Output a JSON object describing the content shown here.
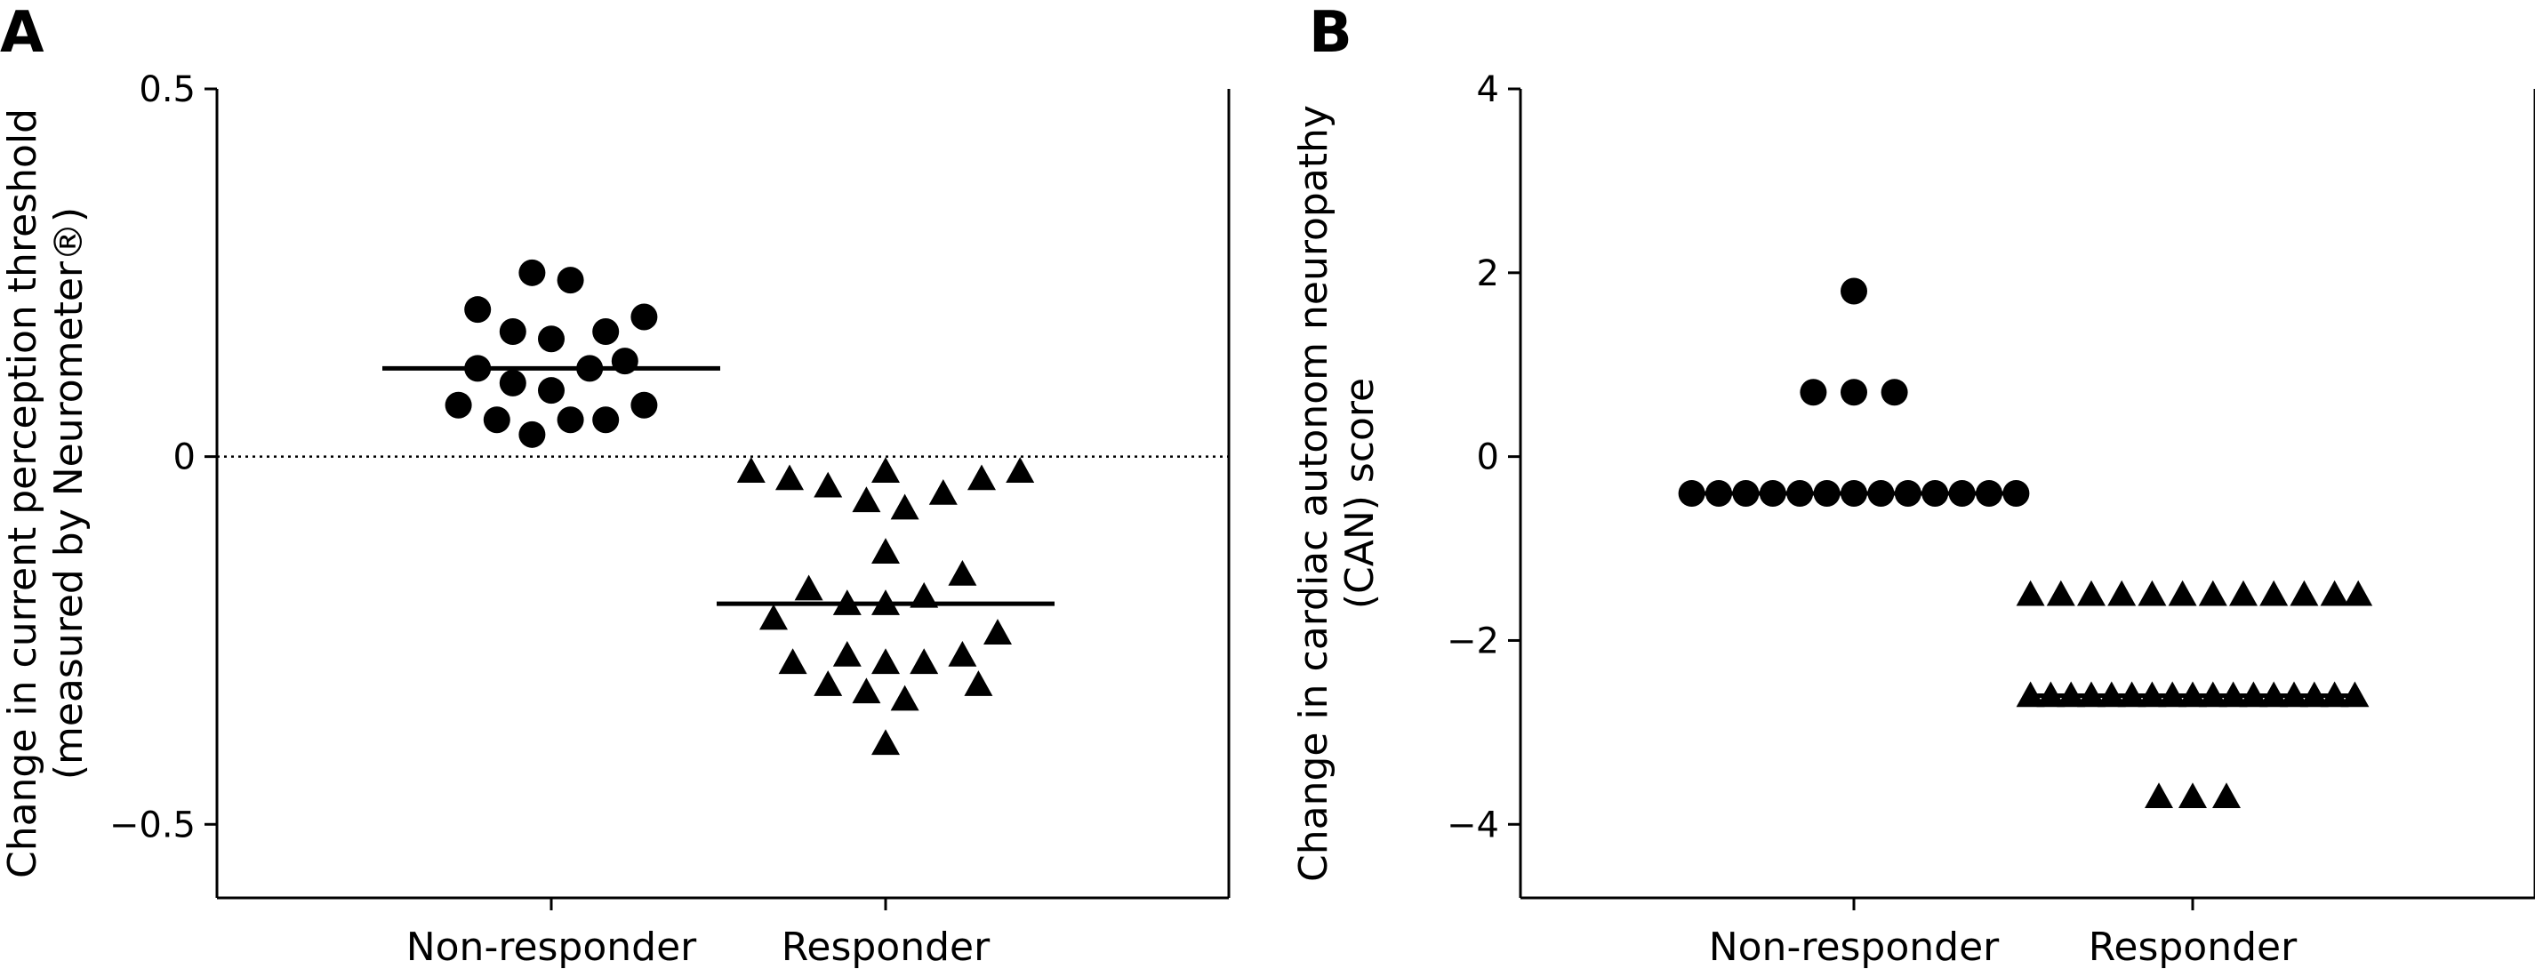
{
  "chart_data": [
    {
      "type": "scatter",
      "panel": "A",
      "ylabel": [
        "Change in current perception threshold",
        "(measured by Neurometer®)"
      ],
      "categories": [
        "Non-responder",
        "Responder"
      ],
      "ylim": [
        -0.6,
        0.5
      ],
      "yticks": [
        0.5,
        0,
        -0.5
      ],
      "ytick_labels": [
        "0.5",
        "0",
        "−0.5"
      ],
      "reference_line": 0,
      "series": [
        {
          "category": "Non-responder",
          "marker": "circle",
          "median": 0.12,
          "points": [
            {
              "dx": -0.06,
              "y": 0.25
            },
            {
              "dx": 0.06,
              "y": 0.24
            },
            {
              "dx": -0.23,
              "y": 0.2
            },
            {
              "dx": 0.29,
              "y": 0.19
            },
            {
              "dx": -0.12,
              "y": 0.17
            },
            {
              "dx": 0.0,
              "y": 0.16
            },
            {
              "dx": 0.17,
              "y": 0.17
            },
            {
              "dx": -0.23,
              "y": 0.12
            },
            {
              "dx": 0.12,
              "y": 0.12
            },
            {
              "dx": 0.23,
              "y": 0.13
            },
            {
              "dx": -0.12,
              "y": 0.1
            },
            {
              "dx": 0.0,
              "y": 0.09
            },
            {
              "dx": -0.29,
              "y": 0.07
            },
            {
              "dx": 0.29,
              "y": 0.07
            },
            {
              "dx": -0.17,
              "y": 0.05
            },
            {
              "dx": 0.06,
              "y": 0.05
            },
            {
              "dx": 0.17,
              "y": 0.05
            },
            {
              "dx": -0.06,
              "y": 0.03
            }
          ]
        },
        {
          "category": "Responder",
          "marker": "triangle",
          "median": -0.2,
          "points": [
            {
              "dx": -0.42,
              "y": -0.02
            },
            {
              "dx": -0.3,
              "y": -0.03
            },
            {
              "dx": -0.18,
              "y": -0.04
            },
            {
              "dx": -0.06,
              "y": -0.06
            },
            {
              "dx": 0.0,
              "y": -0.02
            },
            {
              "dx": 0.06,
              "y": -0.07
            },
            {
              "dx": 0.18,
              "y": -0.05
            },
            {
              "dx": 0.3,
              "y": -0.03
            },
            {
              "dx": 0.42,
              "y": -0.02
            },
            {
              "dx": 0.0,
              "y": -0.13
            },
            {
              "dx": -0.24,
              "y": -0.18
            },
            {
              "dx": 0.24,
              "y": -0.16
            },
            {
              "dx": -0.12,
              "y": -0.2
            },
            {
              "dx": 0.0,
              "y": -0.2
            },
            {
              "dx": 0.12,
              "y": -0.19
            },
            {
              "dx": -0.35,
              "y": -0.22
            },
            {
              "dx": 0.35,
              "y": -0.24
            },
            {
              "dx": -0.29,
              "y": -0.28
            },
            {
              "dx": -0.12,
              "y": -0.27
            },
            {
              "dx": 0.0,
              "y": -0.28
            },
            {
              "dx": 0.12,
              "y": -0.28
            },
            {
              "dx": 0.24,
              "y": -0.27
            },
            {
              "dx": -0.18,
              "y": -0.31
            },
            {
              "dx": 0.29,
              "y": -0.31
            },
            {
              "dx": -0.06,
              "y": -0.32
            },
            {
              "dx": 0.06,
              "y": -0.33
            },
            {
              "dx": 0.0,
              "y": -0.39
            }
          ]
        }
      ]
    },
    {
      "type": "scatter",
      "panel": "B",
      "ylabel": [
        "Change in cardiac autonom neuropathy",
        "(CAN) score"
      ],
      "categories": [
        "Non-responder",
        "Responder"
      ],
      "ylim": [
        -4.8,
        4
      ],
      "yticks": [
        4,
        2,
        0,
        -2,
        -4
      ],
      "ytick_labels": [
        "4",
        "2",
        "0",
        "−2",
        "−4"
      ],
      "series": [
        {
          "category": "Non-responder",
          "marker": "circle",
          "median": -0.4,
          "points": [
            {
              "dx": 0.0,
              "y": 1.8
            },
            {
              "dx": -0.12,
              "y": 0.7
            },
            {
              "dx": 0.0,
              "y": 0.7
            },
            {
              "dx": 0.12,
              "y": 0.7
            },
            {
              "dx": -0.48,
              "y": -0.4
            },
            {
              "dx": -0.4,
              "y": -0.4
            },
            {
              "dx": -0.32,
              "y": -0.4
            },
            {
              "dx": -0.24,
              "y": -0.4
            },
            {
              "dx": -0.16,
              "y": -0.4
            },
            {
              "dx": -0.08,
              "y": -0.4
            },
            {
              "dx": 0.0,
              "y": -0.4
            },
            {
              "dx": 0.08,
              "y": -0.4
            },
            {
              "dx": 0.16,
              "y": -0.4
            },
            {
              "dx": 0.24,
              "y": -0.4
            },
            {
              "dx": 0.32,
              "y": -0.4
            },
            {
              "dx": 0.4,
              "y": -0.4
            },
            {
              "dx": 0.48,
              "y": -0.4
            }
          ]
        },
        {
          "category": "Responder",
          "marker": "triangle",
          "median": -2.6,
          "points": [
            {
              "dx": -0.48,
              "y": -1.5
            },
            {
              "dx": -0.39,
              "y": -1.5
            },
            {
              "dx": -0.3,
              "y": -1.5
            },
            {
              "dx": -0.21,
              "y": -1.5
            },
            {
              "dx": -0.12,
              "y": -1.5
            },
            {
              "dx": -0.03,
              "y": -1.5
            },
            {
              "dx": 0.06,
              "y": -1.5
            },
            {
              "dx": 0.15,
              "y": -1.5
            },
            {
              "dx": 0.24,
              "y": -1.5
            },
            {
              "dx": 0.33,
              "y": -1.5
            },
            {
              "dx": 0.42,
              "y": -1.5
            },
            {
              "dx": 0.49,
              "y": -1.5
            },
            {
              "dx": -0.48,
              "y": -2.6
            },
            {
              "dx": -0.42,
              "y": -2.6
            },
            {
              "dx": -0.36,
              "y": -2.6
            },
            {
              "dx": -0.3,
              "y": -2.6
            },
            {
              "dx": -0.24,
              "y": -2.6
            },
            {
              "dx": -0.18,
              "y": -2.6
            },
            {
              "dx": -0.12,
              "y": -2.6
            },
            {
              "dx": -0.06,
              "y": -2.6
            },
            {
              "dx": 0.0,
              "y": -2.6
            },
            {
              "dx": 0.06,
              "y": -2.6
            },
            {
              "dx": 0.12,
              "y": -2.6
            },
            {
              "dx": 0.18,
              "y": -2.6
            },
            {
              "dx": 0.24,
              "y": -2.6
            },
            {
              "dx": 0.3,
              "y": -2.6
            },
            {
              "dx": 0.36,
              "y": -2.6
            },
            {
              "dx": 0.42,
              "y": -2.6
            },
            {
              "dx": 0.48,
              "y": -2.6
            },
            {
              "dx": -0.1,
              "y": -3.7
            },
            {
              "dx": 0.0,
              "y": -3.7
            },
            {
              "dx": 0.1,
              "y": -3.7
            }
          ]
        }
      ]
    }
  ]
}
